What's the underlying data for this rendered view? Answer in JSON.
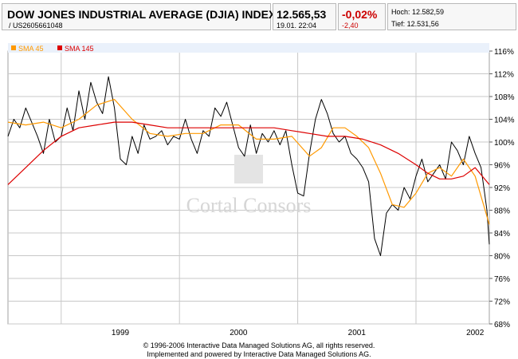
{
  "header": {
    "title": "DOW JONES INDUSTRIAL AVERAGE (DJIA) INDEX",
    "isin": "/  US2605661048",
    "price": "12.565,53",
    "datetime": "19.01. 22:04",
    "change_pct": "-0,02%",
    "change_abs": "-2,40",
    "high_label": "Hoch: 12.582,59",
    "low_label": "Tief: 12.531,56"
  },
  "colors": {
    "price_line": "#000000",
    "sma45": "#ff9900",
    "sma145": "#dd0000",
    "negative": "#cc0000",
    "grid": "#c8c8c8",
    "background": "#ffffff",
    "legend_bg": "#eaf1fb"
  },
  "watermark": "Cortal Consors",
  "footer": {
    "line1": "© 1996-2006 Interactive Data Managed Solutions AG, all rights reserved.",
    "line2": "Implemented and powered by Interactive Data Managed Solutions AG."
  },
  "chart_data": {
    "type": "line",
    "legend": [
      {
        "name": "SMA 45",
        "color": "#ff9900"
      },
      {
        "name": "SMA 145",
        "color": "#dd0000"
      }
    ],
    "legend_position": "top-left",
    "y_axis_position": "right",
    "grid": true,
    "ylim": [
      68,
      116
    ],
    "y_ticks": [
      "116%",
      "112%",
      "108%",
      "104%",
      "100%",
      "96%",
      "92%",
      "88%",
      "84%",
      "80%",
      "76%",
      "72%",
      "68%"
    ],
    "y_tick_values": [
      116,
      112,
      108,
      104,
      100,
      96,
      92,
      88,
      84,
      80,
      76,
      72,
      68
    ],
    "xlim": [
      1998.55,
      2002.62
    ],
    "x_ticks": [
      "1999",
      "2000",
      "2001",
      "2002"
    ],
    "x_tick_values": [
      1999,
      2000,
      2001,
      2002
    ],
    "year_boundaries": [
      1999,
      2000,
      2001,
      2002
    ],
    "series": [
      {
        "name": "Price",
        "x": [
          1998.55,
          1998.6,
          1998.65,
          1998.7,
          1998.75,
          1998.8,
          1998.85,
          1998.9,
          1998.95,
          1999.0,
          1999.05,
          1999.1,
          1999.15,
          1999.2,
          1999.25,
          1999.3,
          1999.35,
          1999.4,
          1999.45,
          1999.5,
          1999.55,
          1999.6,
          1999.65,
          1999.7,
          1999.75,
          1999.8,
          1999.85,
          1999.9,
          1999.95,
          2000.0,
          2000.05,
          2000.1,
          2000.15,
          2000.2,
          2000.25,
          2000.3,
          2000.35,
          2000.4,
          2000.45,
          2000.5,
          2000.55,
          2000.6,
          2000.65,
          2000.7,
          2000.75,
          2000.8,
          2000.85,
          2000.9,
          2000.95,
          2001.0,
          2001.05,
          2001.1,
          2001.15,
          2001.2,
          2001.25,
          2001.3,
          2001.35,
          2001.4,
          2001.45,
          2001.5,
          2001.55,
          2001.6,
          2001.65,
          2001.7,
          2001.75,
          2001.8,
          2001.85,
          2001.9,
          2001.95,
          2002.0,
          2002.05,
          2002.1,
          2002.15,
          2002.2,
          2002.25,
          2002.3,
          2002.35,
          2002.4,
          2002.45,
          2002.5,
          2002.55,
          2002.58,
          2002.6,
          2002.62
        ],
        "values": [
          101,
          104,
          102.5,
          106,
          103.5,
          101,
          98,
          104,
          100,
          101,
          106,
          102,
          109,
          104,
          110.5,
          107,
          105,
          111.5,
          106,
          97,
          96,
          101,
          98,
          103,
          100.5,
          101,
          102,
          99.5,
          101,
          100.5,
          104,
          100.5,
          98,
          102,
          101,
          106,
          104.5,
          107,
          103,
          99,
          97.5,
          103,
          98,
          101.5,
          100,
          102,
          99.5,
          102,
          96,
          91,
          90.5,
          98,
          104,
          107.5,
          105,
          101.5,
          100,
          101,
          98,
          97,
          95.5,
          93,
          83,
          80,
          87.5,
          89,
          88,
          92,
          90,
          94,
          97,
          93,
          94.5,
          96,
          93.5,
          100,
          98.5,
          96,
          101,
          98,
          95.5,
          91,
          88,
          82
        ]
      },
      {
        "name": "SMA 45",
        "x": [
          1998.55,
          1998.7,
          1998.85,
          1999.0,
          1999.15,
          1999.3,
          1999.45,
          1999.6,
          1999.75,
          1999.9,
          2000.05,
          2000.2,
          2000.35,
          2000.5,
          2000.65,
          2000.8,
          2000.95,
          2001.1,
          2001.2,
          2001.3,
          2001.4,
          2001.5,
          2001.6,
          2001.7,
          2001.8,
          2001.9,
          2002.0,
          2002.1,
          2002.2,
          2002.3,
          2002.4,
          2002.5,
          2002.62
        ],
        "values": [
          103.5,
          103,
          103.5,
          102.5,
          104,
          106.5,
          107.5,
          104,
          101.5,
          101,
          101.5,
          101.5,
          103,
          103,
          100.5,
          100.5,
          101,
          97.5,
          99,
          102.5,
          102.5,
          101,
          99,
          94.5,
          89,
          88.5,
          91,
          94.5,
          95.5,
          94,
          97,
          94,
          85.5
        ]
      },
      {
        "name": "SMA 145",
        "x": [
          1998.55,
          1998.7,
          1998.85,
          1999.0,
          1999.15,
          1999.3,
          1999.45,
          1999.6,
          1999.75,
          1999.9,
          2000.05,
          2000.2,
          2000.35,
          2000.5,
          2000.65,
          2000.8,
          2000.95,
          2001.1,
          2001.25,
          2001.4,
          2001.55,
          2001.7,
          2001.85,
          2002.0,
          2002.1,
          2002.2,
          2002.3,
          2002.4,
          2002.5,
          2002.62
        ],
        "values": [
          92.5,
          95.5,
          98.5,
          101,
          102.5,
          103,
          103.5,
          103.5,
          103,
          102.5,
          102.5,
          102.5,
          102.5,
          102.5,
          102.5,
          102.5,
          102,
          101.5,
          101,
          101,
          100.5,
          99.5,
          98,
          96,
          94.5,
          93.5,
          93.5,
          94,
          95.5,
          92.5
        ]
      }
    ]
  }
}
